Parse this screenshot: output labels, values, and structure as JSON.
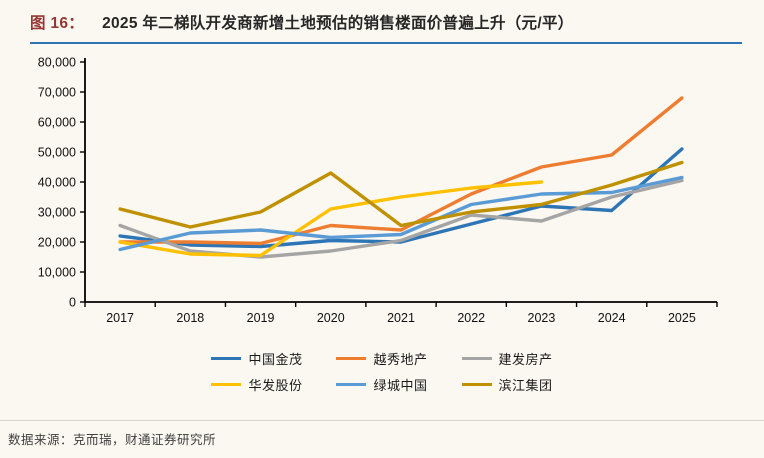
{
  "header": {
    "figure_label": "图 16：",
    "title": "2025 年二梯队开发商新增土地预估的销售楼面价普遍上升（元/平）"
  },
  "footer": {
    "source": "数据来源：克而瑞，财通证券研究所"
  },
  "colors": {
    "title_accent": "#953735",
    "title_rule": "#2E74B5",
    "axis": "#000000"
  },
  "chart_data": {
    "type": "line",
    "title": "2025 年二梯队开发商新增土地预估的销售楼面价普遍上升（元/平）",
    "xlabel": "",
    "ylabel": "",
    "ylim": [
      0,
      80000
    ],
    "ytick_step": 10000,
    "grid": false,
    "legend_position": "bottom",
    "categories": [
      "2017",
      "2018",
      "2019",
      "2020",
      "2021",
      "2022",
      "2023",
      "2024",
      "2025"
    ],
    "series": [
      {
        "name": "中国金茂",
        "color": "#2E75B6",
        "values": [
          22000,
          19000,
          18500,
          20500,
          20000,
          26000,
          32000,
          30500,
          51000
        ]
      },
      {
        "name": "越秀地产",
        "color": "#ED7D31",
        "values": [
          20000,
          20000,
          19500,
          25500,
          24000,
          36000,
          45000,
          49000,
          68000
        ]
      },
      {
        "name": "建发房产",
        "color": "#A5A5A5",
        "values": [
          25500,
          17000,
          15000,
          17000,
          20500,
          29000,
          27000,
          35000,
          40500
        ]
      },
      {
        "name": "华发股份",
        "color": "#FFC000",
        "values": [
          20000,
          16000,
          15500,
          31000,
          35000,
          38000,
          40000,
          null,
          null
        ]
      },
      {
        "name": "绿城中国",
        "color": "#5B9BD5",
        "values": [
          17500,
          23000,
          24000,
          21500,
          22500,
          32500,
          36000,
          36500,
          41500
        ]
      },
      {
        "name": "滨江集团",
        "color": "#BF9000",
        "values": [
          31000,
          25000,
          30000,
          43000,
          25500,
          30000,
          32500,
          39000,
          46500
        ]
      }
    ]
  }
}
